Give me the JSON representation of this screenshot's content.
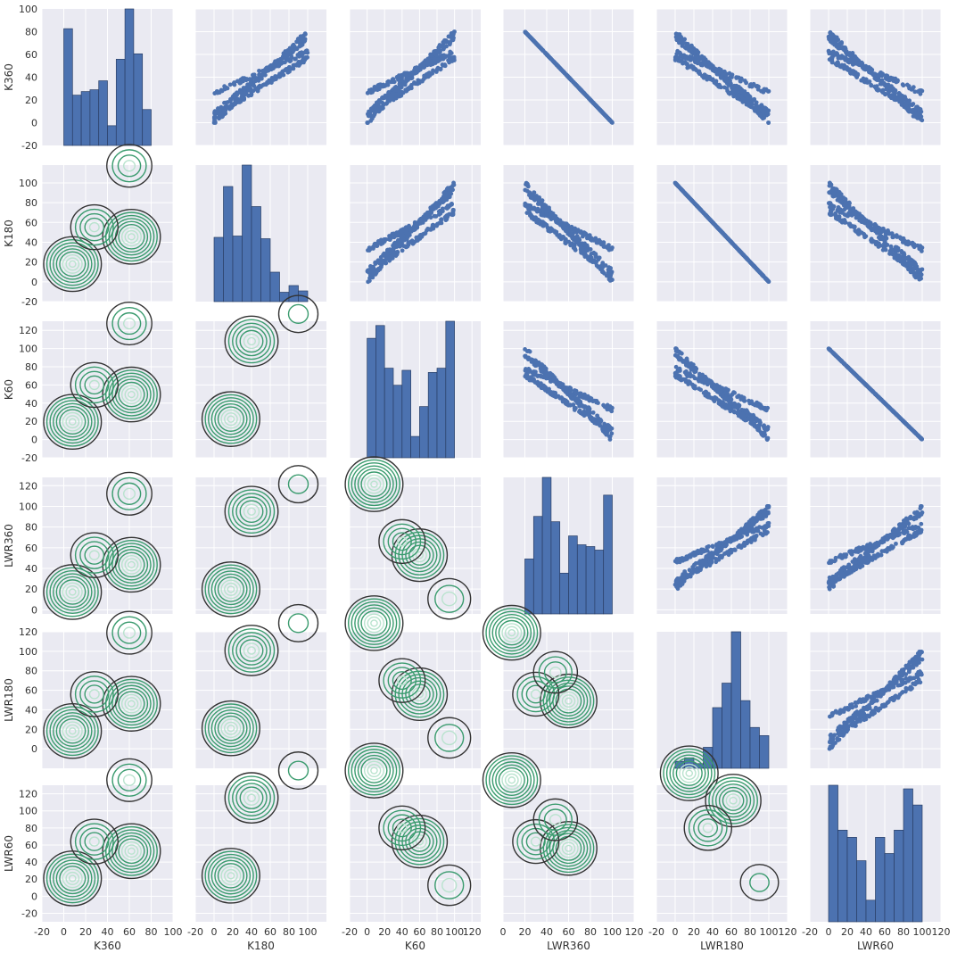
{
  "chart_data": {
    "type": "pairplot",
    "variables": [
      "K360",
      "K180",
      "K60",
      "LWR360",
      "LWR180",
      "LWR60"
    ],
    "upper": "scatter",
    "diagonal": "histogram",
    "lower": "kde-contour",
    "grid": true,
    "colors": {
      "background": "#eaeaf2",
      "grid": "#ffffff",
      "points": "#4c72b0",
      "bars": "#4c72b0",
      "bar_edge": "#2a3f66",
      "kde_outer": "#333333",
      "kde_mid": "#3a9b6e",
      "kde_inner": "#b9e3ce"
    },
    "x_axes": [
      {
        "var": "K360",
        "range": [
          -20,
          100
        ],
        "ticks": [
          "-20",
          "0",
          "20",
          "40",
          "60",
          "80",
          "100"
        ]
      },
      {
        "var": "K180",
        "range": [
          -20,
          120
        ],
        "ticks": [
          "-20",
          "0",
          "20",
          "40",
          "60",
          "80",
          "100"
        ]
      },
      {
        "var": "K60",
        "range": [
          -20,
          130
        ],
        "ticks": [
          "-20",
          "0",
          "20",
          "40",
          "60",
          "80",
          "100",
          "120"
        ]
      },
      {
        "var": "LWR360",
        "range": [
          0,
          120
        ],
        "ticks": [
          "0",
          "20",
          "40",
          "60",
          "80",
          "100",
          "120"
        ]
      },
      {
        "var": "LWR180",
        "range": [
          -20,
          120
        ],
        "ticks": [
          "-20",
          "0",
          "20",
          "40",
          "60",
          "80",
          "100",
          "120"
        ]
      },
      {
        "var": "LWR60",
        "range": [
          -20,
          120
        ],
        "ticks": [
          "-20",
          "0",
          "20",
          "40",
          "60",
          "80",
          "100",
          "120"
        ]
      }
    ],
    "y_axes": [
      {
        "var": "K360",
        "range": [
          -20,
          100
        ],
        "ticks": [
          "-20",
          "0",
          "20",
          "40",
          "60",
          "80",
          "100"
        ]
      },
      {
        "var": "K180",
        "range": [
          -20,
          118
        ],
        "ticks": [
          "-20",
          "0",
          "20",
          "40",
          "60",
          "80",
          "100"
        ]
      },
      {
        "var": "K60",
        "range": [
          -20,
          130
        ],
        "ticks": [
          "-20",
          "0",
          "20",
          "40",
          "60",
          "80",
          "100",
          "120"
        ]
      },
      {
        "var": "LWR360",
        "range": [
          -4,
          128
        ],
        "ticks": [
          "0",
          "20",
          "40",
          "60",
          "80",
          "100",
          "120"
        ]
      },
      {
        "var": "LWR180",
        "range": [
          -20,
          120
        ],
        "ticks": [
          "0",
          "20",
          "40",
          "60",
          "80",
          "100",
          "120"
        ]
      },
      {
        "var": "LWR60",
        "range": [
          -30,
          130
        ],
        "ticks": [
          "-20",
          "0",
          "20",
          "40",
          "60",
          "80",
          "100",
          "120"
        ]
      }
    ],
    "histograms": [
      {
        "var": "K360",
        "edges": [
          0,
          8,
          16,
          24,
          32,
          40,
          48,
          56,
          64,
          72,
          80
        ],
        "counts": [
          65,
          28,
          30,
          31,
          36,
          11,
          48,
          76,
          51,
          20
        ]
      },
      {
        "var": "K180",
        "edges": [
          0,
          10,
          20,
          30,
          40,
          50,
          60,
          70,
          80,
          90,
          100
        ],
        "counts": [
          48,
          86,
          49,
          102,
          71,
          47,
          22,
          7,
          12,
          8
        ]
      },
      {
        "var": "K60",
        "edges": [
          0,
          10,
          20,
          30,
          40,
          50,
          60,
          70,
          80,
          90,
          100
        ],
        "counts": [
          56,
          62,
          42,
          34,
          41,
          10,
          24,
          40,
          42,
          64
        ]
      },
      {
        "var": "LWR360",
        "edges": [
          20,
          28,
          36,
          44,
          52,
          60,
          68,
          76,
          84,
          92,
          100
        ],
        "counts": [
          31,
          55,
          77,
          52,
          23,
          44,
          39,
          38,
          36,
          67
        ]
      },
      {
        "var": "LWR180",
        "edges": [
          0,
          10,
          20,
          30,
          40,
          50,
          60,
          70,
          80,
          90,
          100
        ],
        "counts": [
          6,
          9,
          4,
          18,
          52,
          73,
          117,
          58,
          35,
          28
        ]
      },
      {
        "var": "LWR60",
        "edges": [
          0,
          10,
          20,
          30,
          40,
          50,
          60,
          70,
          80,
          90,
          100
        ],
        "counts": [
          76,
          51,
          47,
          34,
          12,
          47,
          38,
          51,
          74,
          65
        ]
      }
    ],
    "kde_modes": {
      "K360": [
        [
          8,
          13,
          1.0
        ],
        [
          62,
          33,
          1.0
        ],
        [
          28,
          40,
          0.55
        ],
        [
          60,
          85,
          0.45
        ]
      ],
      "K180": [
        [
          18,
          15,
          1.0
        ],
        [
          40,
          72,
          0.8
        ],
        [
          90,
          92,
          0.2
        ]
      ],
      "K60": [
        [
          8,
          92,
          1.0
        ],
        [
          60,
          40,
          0.9
        ],
        [
          40,
          50,
          0.5
        ],
        [
          94,
          8,
          0.35
        ]
      ],
      "LWR360": [
        [
          8,
          85,
          1.0
        ],
        [
          60,
          35,
          0.95
        ],
        [
          30,
          40,
          0.5
        ],
        [
          48,
          56,
          0.4
        ]
      ],
      "LWR180": [
        [
          15,
          90,
          1.0
        ],
        [
          62,
          70,
          0.9
        ],
        [
          35,
          50,
          0.55
        ],
        [
          90,
          10,
          0.15
        ]
      ],
      "LWR60": [
        [
          10,
          86,
          1.0
        ],
        [
          60,
          40,
          0.85
        ],
        [
          35,
          30,
          0.55
        ],
        [
          45,
          42,
          0.2
        ]
      ]
    }
  }
}
